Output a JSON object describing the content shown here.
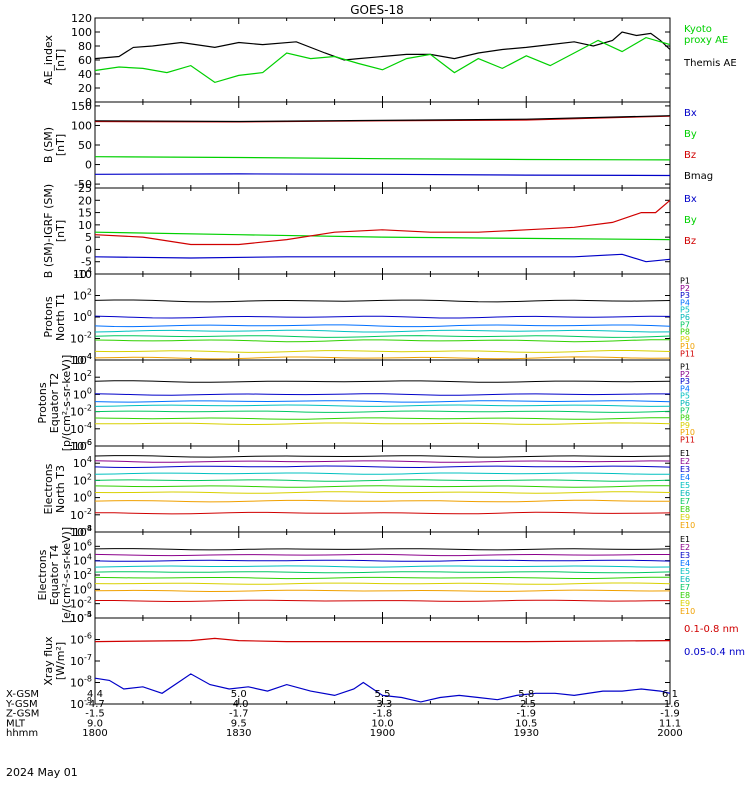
{
  "title": "GOES-18",
  "date_label": "2024 May 01",
  "bottom_axis": {
    "row_labels": [
      "X-GSM",
      "Y-GSM",
      "Z-GSM",
      "MLT",
      "hhmm"
    ],
    "columns": [
      {
        "hhmm": "1800",
        "values": [
          "4.4",
          "-4.7",
          "-1.5",
          "9.0",
          "1800"
        ]
      },
      {
        "hhmm": "1830",
        "values": [
          "5.0",
          "-4.0",
          "-1.7",
          "9.5",
          "1830"
        ]
      },
      {
        "hhmm": "1900",
        "values": [
          "5.5",
          "-3.3",
          "-1.8",
          "10.0",
          "1900"
        ]
      },
      {
        "hhmm": "1930",
        "values": [
          "5.8",
          "-2.5",
          "-1.9",
          "10.5",
          "1930"
        ]
      },
      {
        "hhmm": "2000",
        "values": [
          "6.1",
          "-1.6",
          "-1.9",
          "11.1",
          "2000"
        ]
      }
    ]
  },
  "colors": {
    "black": "#000000",
    "blue": "#0000c8",
    "green": "#00d000",
    "red": "#d00000",
    "ch": [
      "#000000",
      "#8b008b",
      "#0000c8",
      "#0070ff",
      "#00c0c0",
      "#00b8b8",
      "#00c860",
      "#30d000",
      "#d8d000",
      "#f0a000",
      "#d00000"
    ]
  },
  "chart_data": [
    {
      "type": "line",
      "ylabel": "AE_index\n[nT]",
      "ylim": [
        0,
        120
      ],
      "ticks": [
        0,
        20,
        40,
        60,
        80,
        100,
        120
      ],
      "legend": [
        {
          "text": "Kyoto\nproxy AE",
          "color": "#00d000"
        },
        {
          "text": "Themis AE",
          "color": "#000000"
        }
      ],
      "series": [
        {
          "name": "Themis AE",
          "color": "#000000",
          "x": [
            0,
            5,
            8,
            12,
            18,
            25,
            30,
            35,
            42,
            48,
            52,
            55,
            60,
            65,
            70,
            75,
            80,
            85,
            90,
            95,
            100,
            104,
            108,
            110,
            113,
            116,
            118,
            120
          ],
          "y": [
            62,
            65,
            78,
            80,
            85,
            78,
            85,
            82,
            86,
            70,
            60,
            62,
            65,
            68,
            68,
            62,
            70,
            75,
            78,
            82,
            86,
            80,
            88,
            100,
            95,
            98,
            88,
            75
          ]
        },
        {
          "name": "Kyoto proxy AE",
          "color": "#00d000",
          "x": [
            0,
            5,
            10,
            15,
            20,
            25,
            30,
            35,
            40,
            45,
            50,
            55,
            60,
            65,
            70,
            75,
            80,
            85,
            90,
            95,
            100,
            105,
            110,
            115,
            120
          ],
          "y": [
            45,
            50,
            48,
            42,
            52,
            28,
            38,
            42,
            70,
            62,
            65,
            55,
            46,
            62,
            68,
            42,
            62,
            48,
            66,
            52,
            70,
            88,
            72,
            92,
            82
          ]
        }
      ]
    },
    {
      "type": "line",
      "ylabel": "B (SM)\n[nT]",
      "ylim": [
        -60,
        160
      ],
      "ticks": [
        -50,
        0,
        50,
        100,
        150
      ],
      "legend": [
        {
          "text": "Bx",
          "color": "#0000c8"
        },
        {
          "text": "By",
          "color": "#00d000"
        },
        {
          "text": "Bz",
          "color": "#d00000"
        },
        {
          "text": "Bmag",
          "color": "#000000"
        }
      ],
      "series": [
        {
          "name": "Bx",
          "color": "#0000c8",
          "x": [
            0,
            30,
            60,
            90,
            120
          ],
          "y": [
            -25,
            -24,
            -25,
            -27,
            -28
          ]
        },
        {
          "name": "By",
          "color": "#00d000",
          "x": [
            0,
            30,
            60,
            90,
            120
          ],
          "y": [
            20,
            18,
            15,
            13,
            12
          ]
        },
        {
          "name": "Bz",
          "color": "#d00000",
          "x": [
            0,
            30,
            60,
            90,
            120
          ],
          "y": [
            110,
            109,
            112,
            114,
            124
          ]
        },
        {
          "name": "Bmag",
          "color": "#000000",
          "x": [
            0,
            30,
            60,
            90,
            120
          ],
          "y": [
            112,
            110,
            113,
            116,
            125
          ]
        }
      ]
    },
    {
      "type": "line",
      "ylabel": "B (SM)-IGRF (SM)\n[nT]",
      "ylim": [
        -10,
        25
      ],
      "ticks": [
        -10,
        -5,
        0,
        5,
        10,
        15,
        20,
        25
      ],
      "legend": [
        {
          "text": "Bx",
          "color": "#0000c8"
        },
        {
          "text": "By",
          "color": "#00d000"
        },
        {
          "text": "Bz",
          "color": "#d00000"
        }
      ],
      "series": [
        {
          "name": "Bx",
          "color": "#0000c8",
          "x": [
            0,
            20,
            40,
            60,
            80,
            100,
            110,
            115,
            120
          ],
          "y": [
            -3,
            -3.5,
            -3,
            -3,
            -3,
            -3,
            -2,
            -5,
            -4
          ]
        },
        {
          "name": "By",
          "color": "#00d000",
          "x": [
            0,
            30,
            60,
            90,
            120
          ],
          "y": [
            7,
            6,
            5,
            4.5,
            4
          ]
        },
        {
          "name": "Bz",
          "color": "#d00000",
          "x": [
            0,
            10,
            20,
            30,
            40,
            50,
            60,
            70,
            80,
            90,
            100,
            108,
            114,
            117,
            120
          ],
          "y": [
            6,
            5,
            2,
            2,
            4,
            7,
            8,
            7,
            7,
            8,
            9,
            11,
            15,
            15,
            20
          ]
        }
      ]
    },
    {
      "type": "line",
      "log": true,
      "ylabel": "Protons\nNorth T1",
      "ylim": [
        -4,
        4
      ],
      "ticks": [
        -4,
        -2,
        0,
        2,
        4
      ],
      "legend_labels": [
        "P1",
        "P2",
        "P3",
        "P4",
        "P5",
        "P6",
        "P7",
        "P8",
        "P9",
        "P10",
        "P11"
      ],
      "levels": [
        {
          "name": "P1",
          "color": "#000000",
          "level": 1.5
        },
        {
          "name": "P3",
          "color": "#0000c8",
          "level": 0.0
        },
        {
          "name": "P4",
          "color": "#0070ff",
          "level": -0.8
        },
        {
          "name": "P5",
          "color": "#00c0c0",
          "level": -1.3
        },
        {
          "name": "P7",
          "color": "#00c860",
          "level": -1.8
        },
        {
          "name": "P8",
          "color": "#30d000",
          "level": -2.2
        },
        {
          "name": "P9",
          "color": "#d8d000",
          "level": -3.2
        },
        {
          "name": "P10",
          "color": "#f0a000",
          "level": -3.8
        }
      ]
    },
    {
      "type": "line",
      "log": true,
      "ylabel": "Protons\nEquator T2\n[p/(cm²-s-sr-keV)]",
      "ylim": [
        -6,
        4
      ],
      "ticks": [
        -6,
        -4,
        -2,
        0,
        2,
        4
      ],
      "legend_labels": [
        "P1",
        "P2",
        "P3",
        "P4",
        "P5",
        "P6",
        "P7",
        "P8",
        "P9",
        "P10",
        "P11"
      ],
      "levels": [
        {
          "name": "P1",
          "color": "#000000",
          "level": 1.5
        },
        {
          "name": "P3",
          "color": "#0000c8",
          "level": 0.0
        },
        {
          "name": "P4",
          "color": "#0070ff",
          "level": -0.8
        },
        {
          "name": "P5",
          "color": "#00c0c0",
          "level": -1.3
        },
        {
          "name": "P7",
          "color": "#00c860",
          "level": -2.0
        },
        {
          "name": "P8",
          "color": "#30d000",
          "level": -2.8
        },
        {
          "name": "P9",
          "color": "#d8d000",
          "level": -3.4
        }
      ]
    },
    {
      "type": "line",
      "log": true,
      "ylabel": "Electrons\nNorth T3",
      "ylim": [
        -4,
        6
      ],
      "ticks": [
        -4,
        -2,
        0,
        2,
        4,
        6
      ],
      "legend_labels": [
        "E1",
        "E2",
        "E3",
        "E4",
        "E5",
        "E6",
        "E7",
        "E8",
        "E9",
        "E10"
      ],
      "levels": [
        {
          "name": "E1",
          "color": "#000000",
          "level": 4.8
        },
        {
          "name": "E2",
          "color": "#8b008b",
          "level": 4.2
        },
        {
          "name": "E3",
          "color": "#0000c8",
          "level": 3.6
        },
        {
          "name": "E4",
          "color": "#00c0c0",
          "level": 2.8
        },
        {
          "name": "E5",
          "color": "#00c860",
          "level": 2.0
        },
        {
          "name": "E6",
          "color": "#30d000",
          "level": 1.3
        },
        {
          "name": "E7",
          "color": "#d8d000",
          "level": 0.6
        },
        {
          "name": "E8",
          "color": "#f0a000",
          "level": -0.4
        },
        {
          "name": "E9",
          "color": "#d00000",
          "level": -1.8
        }
      ]
    },
    {
      "type": "line",
      "log": true,
      "ylabel": "Electrons\nEquator T4\n[e/(cm²-s-sr-keV)]",
      "ylim": [
        -4,
        8
      ],
      "ticks": [
        -4,
        -2,
        0,
        2,
        4,
        6,
        8
      ],
      "legend_labels": [
        "E1",
        "E2",
        "E3",
        "E4",
        "E5",
        "E6",
        "E7",
        "E8",
        "E9",
        "E10"
      ],
      "levels": [
        {
          "name": "E1",
          "color": "#000000",
          "level": 5.6
        },
        {
          "name": "E2",
          "color": "#8b008b",
          "level": 4.8
        },
        {
          "name": "E3",
          "color": "#0000c8",
          "level": 4.0
        },
        {
          "name": "E4",
          "color": "#00c0c0",
          "level": 3.2
        },
        {
          "name": "E5",
          "color": "#00c860",
          "level": 2.4
        },
        {
          "name": "E6",
          "color": "#30d000",
          "level": 1.6
        },
        {
          "name": "E7",
          "color": "#d8d000",
          "level": 0.8
        },
        {
          "name": "E8",
          "color": "#f0a000",
          "level": -0.2
        },
        {
          "name": "E9",
          "color": "#d00000",
          "level": -1.6
        }
      ]
    },
    {
      "type": "line",
      "log": true,
      "ylabel": "Xray flux\n[W/m²]",
      "ylim": [
        -9,
        -5
      ],
      "ticks": [
        -9,
        -8,
        -7,
        -6,
        -5
      ],
      "legend": [
        {
          "text": "0.1-0.8 nm",
          "color": "#d00000"
        },
        {
          "text": "0.05-0.4 nm",
          "color": "#0000c8"
        }
      ],
      "series": [
        {
          "name": "0.1-0.8 nm",
          "color": "#d00000",
          "x": [
            0,
            20,
            25,
            30,
            40,
            60,
            90,
            120
          ],
          "y": [
            -6.1,
            -6.05,
            -5.95,
            -6.05,
            -6.1,
            -6.1,
            -6.1,
            -6.05
          ]
        },
        {
          "name": "0.05-0.4 nm",
          "color": "#0000c8",
          "x": [
            0,
            3,
            6,
            10,
            14,
            18,
            20,
            24,
            28,
            32,
            36,
            40,
            45,
            50,
            54,
            56,
            60,
            64,
            68,
            72,
            76,
            80,
            84,
            88,
            92,
            96,
            100,
            106,
            110,
            114,
            118,
            120
          ],
          "y": [
            -7.8,
            -7.9,
            -8.3,
            -8.2,
            -8.5,
            -7.9,
            -7.6,
            -8.1,
            -8.3,
            -8.2,
            -8.4,
            -8.1,
            -8.4,
            -8.6,
            -8.3,
            -8.0,
            -8.6,
            -8.7,
            -8.9,
            -8.7,
            -8.6,
            -8.7,
            -8.8,
            -8.6,
            -8.5,
            -8.5,
            -8.6,
            -8.4,
            -8.4,
            -8.3,
            -8.4,
            -8.5
          ]
        }
      ]
    }
  ]
}
